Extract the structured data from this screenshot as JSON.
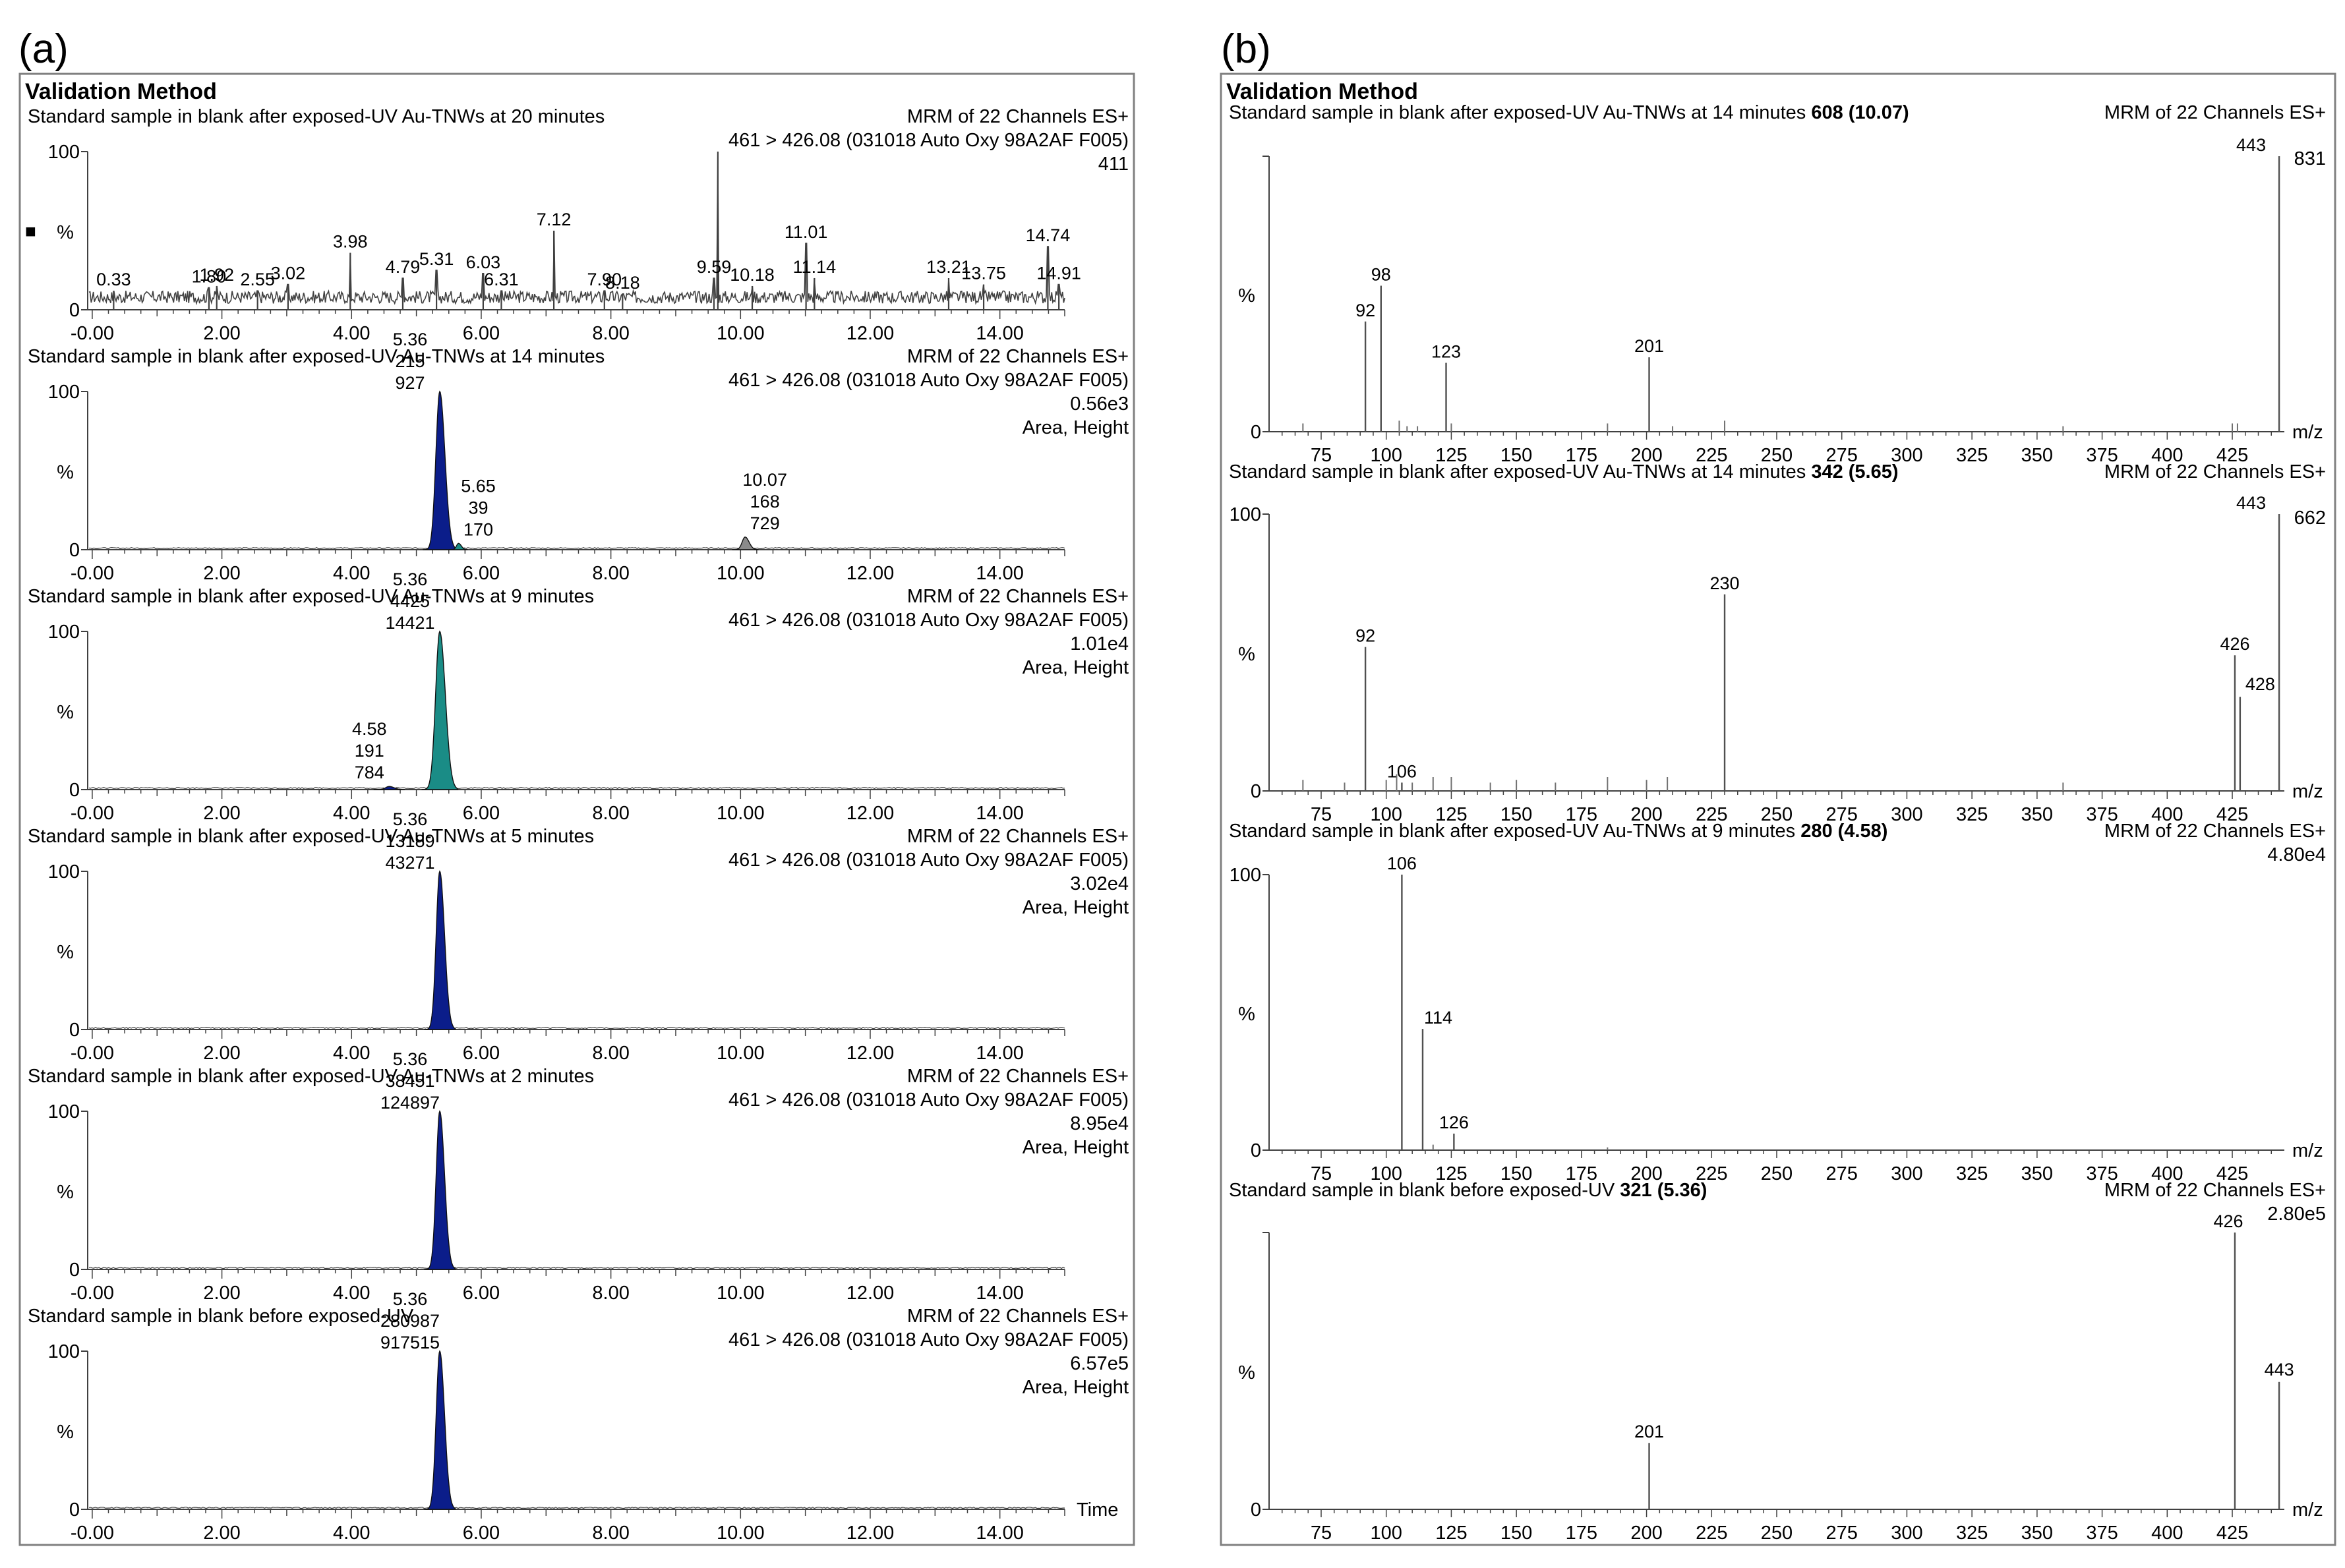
{
  "panel_labels": {
    "a": "(a)",
    "b": "(b)"
  },
  "colors": {
    "frame": "#808080",
    "trace": "#404040",
    "navy": "#0b1d8a",
    "teal": "#1a8c86",
    "grey_fill": "#8a8a8a",
    "tick": "#404040"
  },
  "chart_data": [
    {
      "id": "a",
      "type": "line",
      "method_title": "Validation Method",
      "x_ticks": [
        "-0.00",
        "2.00",
        "4.00",
        "6.00",
        "8.00",
        "10.00",
        "12.00",
        "14.00"
      ],
      "xlim": [
        -0.05,
        15.0
      ],
      "ylim": [
        0,
        100
      ],
      "y_top_label": "100",
      "y_bottom_label": "0",
      "y_axis_label": "%",
      "x_axis_label": "Time",
      "traces": [
        {
          "title": "Standard sample in blank after exposed-UV Au-TNWs at 20 minutes",
          "right_lines": [
            "MRM of 22 Channels ES+",
            "461 > 426.08 (031018 Auto Oxy  98A2AF F005)",
            "411"
          ],
          "marker": "■",
          "style": "noisy",
          "spikes": [
            {
              "rt": 0.33,
              "h": 12
            },
            {
              "rt": 1.8,
              "h": 14
            },
            {
              "rt": 1.92,
              "h": 15
            },
            {
              "rt": 2.55,
              "h": 12
            },
            {
              "rt": 3.02,
              "h": 16
            },
            {
              "rt": 3.98,
              "h": 36
            },
            {
              "rt": 4.79,
              "h": 20
            },
            {
              "rt": 5.31,
              "h": 25
            },
            {
              "rt": 6.03,
              "h": 23
            },
            {
              "rt": 6.31,
              "h": 12
            },
            {
              "rt": 7.12,
              "h": 50
            },
            {
              "rt": 7.9,
              "h": 12
            },
            {
              "rt": 8.18,
              "h": 10
            },
            {
              "rt": 9.59,
              "h": 20
            },
            {
              "rt": 9.65,
              "h": 100
            },
            {
              "rt": 10.18,
              "h": 15
            },
            {
              "rt": 11.01,
              "h": 42
            },
            {
              "rt": 11.14,
              "h": 20
            },
            {
              "rt": 13.21,
              "h": 20
            },
            {
              "rt": 13.75,
              "h": 16
            },
            {
              "rt": 14.74,
              "h": 40
            },
            {
              "rt": 14.91,
              "h": 16
            }
          ],
          "labels": [
            "0.33",
            "1.80",
            "1.92",
            "2.55",
            "3.02",
            "3.98",
            "4.79",
            "5.31",
            "6.03",
            "6.31",
            "7.12",
            "7.90",
            "8.18",
            "9.59",
            "10.18",
            "11.01",
            "11.14",
            "13.21",
            "13.75",
            "14.74",
            "14.91"
          ]
        },
        {
          "title": "Standard sample in blank after exposed-UV Au-TNWs at 14 minutes",
          "right_lines": [
            "MRM of 22 Channels ES+",
            "461 > 426.08 (031018 Auto Oxy  98A2AF F005)",
            "0.56e3",
            "Area, Height"
          ],
          "style": "peaks",
          "peaks": [
            {
              "rt": 5.36,
              "h": 100,
              "w": 0.13,
              "color": "navy",
              "labels": [
                "5.36",
                "215",
                "927"
              ]
            },
            {
              "rt": 5.65,
              "h": 4,
              "w": 0.07,
              "color": "teal",
              "labels": [
                "5.65",
                "39",
                "170"
              ]
            },
            {
              "rt": 10.07,
              "h": 8,
              "w": 0.1,
              "color": "grey_fill",
              "labels": [
                "10.07",
                "168",
                "729"
              ]
            }
          ]
        },
        {
          "title": "Standard sample in blank after exposed-UV Au-TNWs at 9 minutes",
          "right_lines": [
            "MRM of 22 Channels ES+",
            "461 > 426.08 (031018 Auto Oxy  98A2AF F005)",
            "1.01e4",
            "Area, Height"
          ],
          "style": "peaks",
          "peaks": [
            {
              "rt": 5.36,
              "h": 100,
              "w": 0.14,
              "color": "teal",
              "labels": [
                "5.36",
                "4425",
                "14421"
              ]
            },
            {
              "rt": 4.58,
              "h": 2,
              "w": 0.12,
              "color": "navy",
              "labels": [
                "4.58",
                "191",
                "784"
              ]
            }
          ]
        },
        {
          "title": "Standard sample in blank after exposed-UV Au-TNWs at 5 minutes",
          "right_lines": [
            "MRM of 22 Channels ES+",
            "461 > 426.08 (031018 Auto Oxy  98A2AF F005)",
            "3.02e4",
            "Area, Height"
          ],
          "style": "peaks",
          "peaks": [
            {
              "rt": 5.36,
              "h": 100,
              "w": 0.12,
              "color": "navy",
              "labels": [
                "5.36",
                "13189",
                "43271"
              ]
            }
          ]
        },
        {
          "title": "Standard sample in blank after exposed-UV Au-TNWs at 2 minutes",
          "right_lines": [
            "MRM of 22 Channels ES+",
            "461 > 426.08 (031018 Auto Oxy  98A2AF F005)",
            "8.95e4",
            "Area, Height"
          ],
          "style": "peaks",
          "peaks": [
            {
              "rt": 5.36,
              "h": 100,
              "w": 0.12,
              "color": "navy",
              "labels": [
                "5.36",
                "38451",
                "124897"
              ]
            }
          ]
        },
        {
          "title": "Standard sample in blank before exposed-UV",
          "right_lines": [
            "MRM of 22 Channels ES+",
            "461 > 426.08 (031018 Auto Oxy  98A2AF F005)",
            "6.57e5",
            "Area, Height"
          ],
          "style": "peaks",
          "show_time_label": true,
          "peaks": [
            {
              "rt": 5.36,
              "h": 100,
              "w": 0.12,
              "color": "navy",
              "labels": [
                "5.36",
                "280987",
                "917515"
              ]
            }
          ]
        }
      ]
    },
    {
      "id": "b",
      "type": "bar",
      "method_title": "Validation Method",
      "x_ticks": [
        "75",
        "100",
        "125",
        "150",
        "175",
        "200",
        "225",
        "250",
        "275",
        "300",
        "325",
        "350",
        "375",
        "400",
        "425"
      ],
      "xlim": [
        55,
        445
      ],
      "ylim": [
        0,
        100
      ],
      "y_axis_label": "%",
      "x_axis_label": "m/z",
      "spectra": [
        {
          "title": "Standard sample in blank after exposed-UV Au-TNWs at 14 minutes",
          "scan": "608 (10.07)",
          "right_lines": [
            "MRM of 22 Channels ES+",
            "831"
          ],
          "y_top_label": "",
          "y_bottom_label": "0",
          "peaks": [
            {
              "mz": 92,
              "h": 40,
              "label": "92"
            },
            {
              "mz": 98,
              "h": 53,
              "label": "98"
            },
            {
              "mz": 123,
              "h": 25,
              "label": "123"
            },
            {
              "mz": 201,
              "h": 27,
              "label": "201"
            },
            {
              "mz": 443,
              "h": 100,
              "label": "443"
            }
          ],
          "minor": [
            [
              68,
              3
            ],
            [
              105,
              4
            ],
            [
              108,
              2
            ],
            [
              112,
              2
            ],
            [
              125,
              3
            ],
            [
              185,
              3
            ],
            [
              210,
              2
            ],
            [
              230,
              4
            ],
            [
              360,
              2
            ],
            [
              425,
              3
            ],
            [
              427,
              3
            ]
          ]
        },
        {
          "title": "Standard sample in blank after exposed-UV Au-TNWs at 14 minutes",
          "scan": "342 (5.65)",
          "right_lines": [
            "MRM of 22 Channels ES+",
            "662"
          ],
          "y_top_label": "100",
          "y_bottom_label": "0",
          "peaks": [
            {
              "mz": 92,
              "h": 52,
              "label": "92"
            },
            {
              "mz": 106,
              "h": 3,
              "label": "106"
            },
            {
              "mz": 230,
              "h": 71,
              "label": "230"
            },
            {
              "mz": 426,
              "h": 49,
              "label": "426"
            },
            {
              "mz": 428,
              "h": 34,
              "label": "428"
            },
            {
              "mz": 443,
              "h": 100,
              "label": "443"
            }
          ],
          "minor": [
            [
              68,
              4
            ],
            [
              84,
              3
            ],
            [
              100,
              4
            ],
            [
              104,
              6
            ],
            [
              110,
              3
            ],
            [
              118,
              5
            ],
            [
              125,
              5
            ],
            [
              140,
              3
            ],
            [
              150,
              4
            ],
            [
              165,
              3
            ],
            [
              185,
              5
            ],
            [
              200,
              4
            ],
            [
              208,
              5
            ],
            [
              360,
              3
            ]
          ]
        },
        {
          "title": "Standard sample in blank after exposed-UV Au-TNWs at 9 minutes",
          "scan": "280 (4.58)",
          "right_lines": [
            "MRM of 22 Channels ES+",
            "4.80e4"
          ],
          "y_top_label": "100",
          "y_bottom_label": "0",
          "peaks": [
            {
              "mz": 106,
              "h": 100,
              "label": "106"
            },
            {
              "mz": 114,
              "h": 44,
              "label": "114"
            },
            {
              "mz": 126,
              "h": 6,
              "label": "126"
            }
          ],
          "minor": [
            [
              118,
              2
            ],
            [
              185,
              1
            ]
          ]
        },
        {
          "title": "Standard sample in blank before exposed-UV",
          "scan": "321 (5.36)",
          "right_lines": [
            "MRM of 22 Channels ES+",
            "2.80e5"
          ],
          "y_top_label": "",
          "y_bottom_label": "0",
          "peaks": [
            {
              "mz": 201,
              "h": 24,
              "label": "201"
            },
            {
              "mz": 426,
              "h": 100,
              "label": "426"
            },
            {
              "mz": 443,
              "h": 46,
              "label": "443"
            }
          ],
          "minor": []
        }
      ]
    }
  ]
}
